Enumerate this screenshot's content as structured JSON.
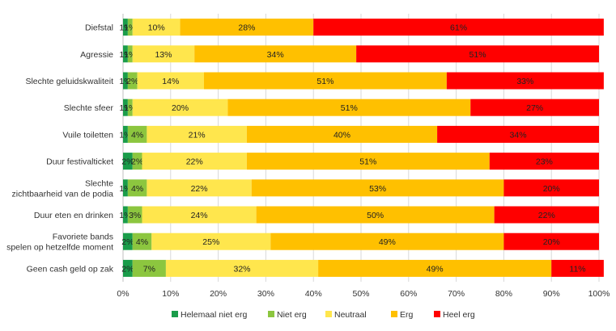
{
  "chart_data": {
    "type": "bar",
    "orientation": "horizontal",
    "stacked": "percent",
    "categories": [
      "Diefstal",
      "Agressie",
      "Slechte geluidskwaliteit",
      "Slechte sfeer",
      "Vuile toiletten",
      "Duur festivalticket",
      "Slechte zichtbaarheid van de podia",
      "Duur eten en drinken",
      "Favoriete bands spelen op hetzelfde moment",
      "Geen cash geld op zak"
    ],
    "category_lines": [
      [
        "Diefstal"
      ],
      [
        "Agressie"
      ],
      [
        "Slechte geluidskwaliteit"
      ],
      [
        "Slechte sfeer"
      ],
      [
        "Vuile toiletten"
      ],
      [
        "Duur festivalticket"
      ],
      [
        "Slechte",
        "zichtbaarheid van de podia"
      ],
      [
        "Duur eten en drinken"
      ],
      [
        "Favoriete bands",
        "spelen op hetzelfde moment"
      ],
      [
        "Geen cash geld op zak"
      ]
    ],
    "series": [
      {
        "name": "Helemaal niet erg",
        "color": "#1a9c4a",
        "values": [
          1,
          1,
          1,
          1,
          1,
          2,
          1,
          1,
          2,
          2
        ]
      },
      {
        "name": "Niet erg",
        "color": "#8cc63f",
        "values": [
          1,
          1,
          2,
          1,
          4,
          2,
          4,
          3,
          4,
          7
        ]
      },
      {
        "name": "Neutraal",
        "color": "#ffe64d",
        "values": [
          10,
          13,
          14,
          20,
          21,
          22,
          22,
          24,
          25,
          32
        ]
      },
      {
        "name": "Erg",
        "color": "#ffc000",
        "values": [
          28,
          34,
          51,
          51,
          40,
          51,
          53,
          50,
          49,
          49
        ]
      },
      {
        "name": "Heel erg",
        "color": "#ff0000",
        "values": [
          61,
          51,
          33,
          27,
          34,
          23,
          20,
          22,
          20,
          11
        ]
      }
    ],
    "xlim": [
      0,
      100
    ],
    "x_ticks": [
      "0%",
      "10%",
      "20%",
      "30%",
      "40%",
      "50%",
      "60%",
      "70%",
      "80%",
      "90%",
      "100%"
    ],
    "grid": true,
    "legend_position": "bottom"
  }
}
